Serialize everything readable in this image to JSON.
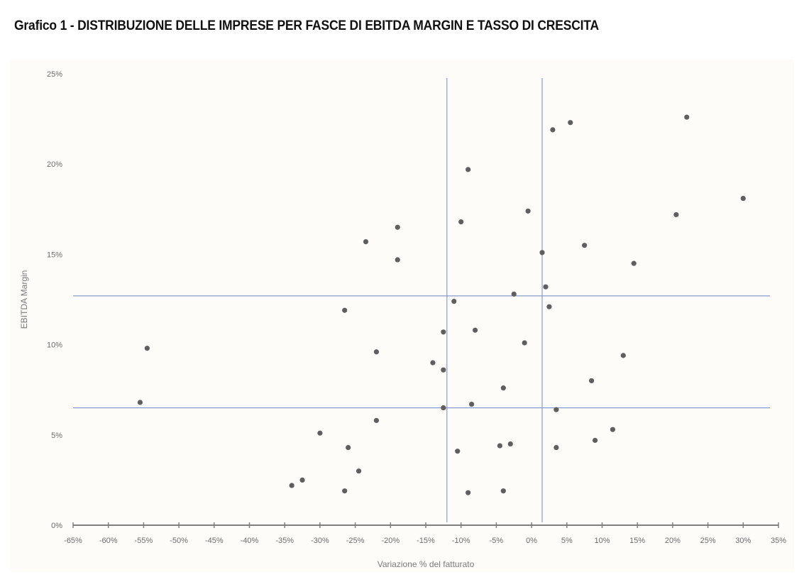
{
  "title": "Grafico 1 - DISTRIBUZIONE DELLE IMPRESE PER FASCE DI EBITDA MARGIN E TASSO DI CRESCITA",
  "colors": {
    "points": "#5f5f5f",
    "reference_lines": "#8a9bd0",
    "axis": "#7f7f7f",
    "text": "#6b6b6b"
  },
  "chart_data": {
    "type": "scatter",
    "xlabel": "Variazione % del fatturato",
    "ylabel": "EBITDA Margin",
    "xlim": [
      -65,
      35
    ],
    "ylim": [
      0,
      25
    ],
    "x_ticks": [
      "-65%",
      "-60%",
      "-55%",
      "-50%",
      "-45%",
      "-40%",
      "-35%",
      "-30%",
      "-25%",
      "-20%",
      "-15%",
      "-10%",
      "-5%",
      "0%",
      "5%",
      "10%",
      "15%",
      "20%",
      "25%",
      "30%",
      "35%"
    ],
    "y_ticks": [
      "0%",
      "5%",
      "10%",
      "15%",
      "20%",
      "25%"
    ],
    "grid": false,
    "reference_lines": {
      "vertical": [
        -12,
        1.5
      ],
      "horizontal": [
        6.5,
        12.7
      ]
    },
    "points": [
      {
        "x": -55.5,
        "y": 6.8
      },
      {
        "x": -54.5,
        "y": 9.8
      },
      {
        "x": -34,
        "y": 2.2
      },
      {
        "x": -32.5,
        "y": 2.5
      },
      {
        "x": -30,
        "y": 5.1
      },
      {
        "x": -26.5,
        "y": 11.9
      },
      {
        "x": -26.5,
        "y": 1.9
      },
      {
        "x": -26,
        "y": 4.3
      },
      {
        "x": -24.5,
        "y": 3.0
      },
      {
        "x": -23.5,
        "y": 15.7
      },
      {
        "x": -22,
        "y": 9.6
      },
      {
        "x": -22,
        "y": 5.8
      },
      {
        "x": -19,
        "y": 16.5
      },
      {
        "x": -19,
        "y": 14.7
      },
      {
        "x": -14,
        "y": 9.0
      },
      {
        "x": -12.5,
        "y": 10.7
      },
      {
        "x": -12.5,
        "y": 8.6
      },
      {
        "x": -12.5,
        "y": 6.5
      },
      {
        "x": -11,
        "y": 12.4
      },
      {
        "x": -10.5,
        "y": 4.1
      },
      {
        "x": -10,
        "y": 16.8
      },
      {
        "x": -9,
        "y": 19.7
      },
      {
        "x": -9,
        "y": 1.8
      },
      {
        "x": -8.5,
        "y": 6.7
      },
      {
        "x": -8,
        "y": 10.8
      },
      {
        "x": -4.5,
        "y": 4.4
      },
      {
        "x": -4,
        "y": 7.6
      },
      {
        "x": -4,
        "y": 1.9
      },
      {
        "x": -3,
        "y": 4.5
      },
      {
        "x": -2.5,
        "y": 12.8
      },
      {
        "x": -1,
        "y": 10.1
      },
      {
        "x": -0.5,
        "y": 17.4
      },
      {
        "x": 1.5,
        "y": 15.1
      },
      {
        "x": 2,
        "y": 13.2
      },
      {
        "x": 2.5,
        "y": 12.1
      },
      {
        "x": 3,
        "y": 21.9
      },
      {
        "x": 3.5,
        "y": 6.4
      },
      {
        "x": 3.5,
        "y": 4.3
      },
      {
        "x": 5.5,
        "y": 22.3
      },
      {
        "x": 7.5,
        "y": 15.5
      },
      {
        "x": 8.5,
        "y": 8.0
      },
      {
        "x": 9,
        "y": 4.7
      },
      {
        "x": 11.5,
        "y": 5.3
      },
      {
        "x": 13,
        "y": 9.4
      },
      {
        "x": 14.5,
        "y": 14.5
      },
      {
        "x": 20.5,
        "y": 17.2
      },
      {
        "x": 22,
        "y": 22.6
      },
      {
        "x": 30,
        "y": 18.1
      }
    ]
  }
}
